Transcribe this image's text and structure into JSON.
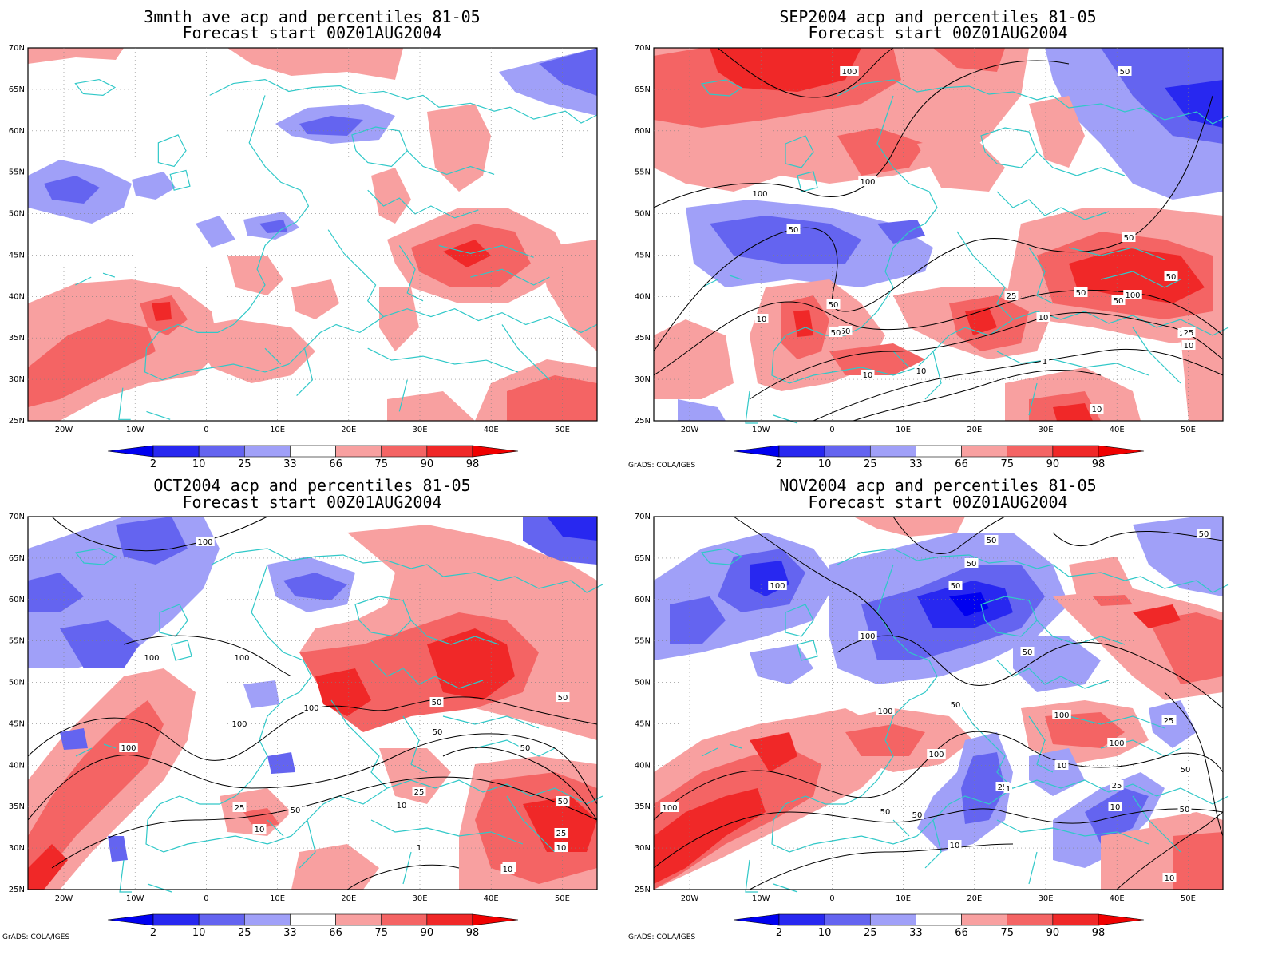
{
  "figure": {
    "panels": [
      {
        "id": "3mnth",
        "title_line1": "3mnth_ave acp and percentiles 81-05",
        "title_line2": "Forecast start 00Z01AUG2004",
        "credit": "",
        "contour_labels": []
      },
      {
        "id": "sep",
        "title_line1": "SEP2004 acp and percentiles 81-05",
        "title_line2": "Forecast start 00Z01AUG2004",
        "credit": "GrADS: COLA/IGES",
        "contour_labels": [
          "100",
          "100",
          "100",
          "50",
          "50",
          "50",
          "50",
          "50",
          "50",
          "100",
          "25",
          "10",
          "10",
          "25",
          "10",
          "1",
          "10",
          "10",
          "50",
          "25",
          "10",
          "50",
          "50"
        ]
      },
      {
        "id": "oct",
        "title_line1": "OCT2004 acp and percentiles 81-05",
        "title_line2": "Forecast start 00Z01AUG2004",
        "credit": "GrADS: COLA/IGES",
        "contour_labels": [
          "100",
          "100",
          "100",
          "100",
          "100",
          "100",
          "50",
          "50",
          "50",
          "50",
          "50",
          "25",
          "25",
          "10",
          "10",
          "10",
          "1",
          "10",
          "25",
          "10",
          "50"
        ]
      },
      {
        "id": "nov",
        "title_line1": "NOV2004 acp and percentiles 81-05",
        "title_line2": "Forecast start 00Z01AUG2004",
        "credit": "GrADS: COLA/IGES",
        "contour_labels": [
          "100",
          "50",
          "50",
          "50",
          "100",
          "50",
          "50",
          "100",
          "100",
          "100",
          "100",
          "25",
          "50",
          "10",
          "1",
          "10",
          "50",
          "25",
          "50",
          "25",
          "10",
          "100",
          "50",
          "10",
          "50",
          "50"
        ]
      }
    ],
    "lat_ticks": [
      "70N",
      "65N",
      "60N",
      "55N",
      "50N",
      "45N",
      "40N",
      "35N",
      "30N",
      "25N"
    ],
    "lon_ticks": [
      "20W",
      "10W",
      "0",
      "10E",
      "20E",
      "30E",
      "40E",
      "50E"
    ],
    "colorbar": {
      "ticks": [
        "2",
        "10",
        "25",
        "33",
        "66",
        "75",
        "90",
        "98"
      ],
      "colors": {
        "lt2": "#0000f0",
        "b2_10": "#2828f0",
        "b10_25": "#6464f0",
        "b25_33": "#a0a0f8",
        "b66_75": "#f8a0a0",
        "b75_90": "#f46464",
        "b90_98": "#f02828",
        "gt98": "#f00000"
      }
    },
    "coast_color": "#30c8c8"
  }
}
